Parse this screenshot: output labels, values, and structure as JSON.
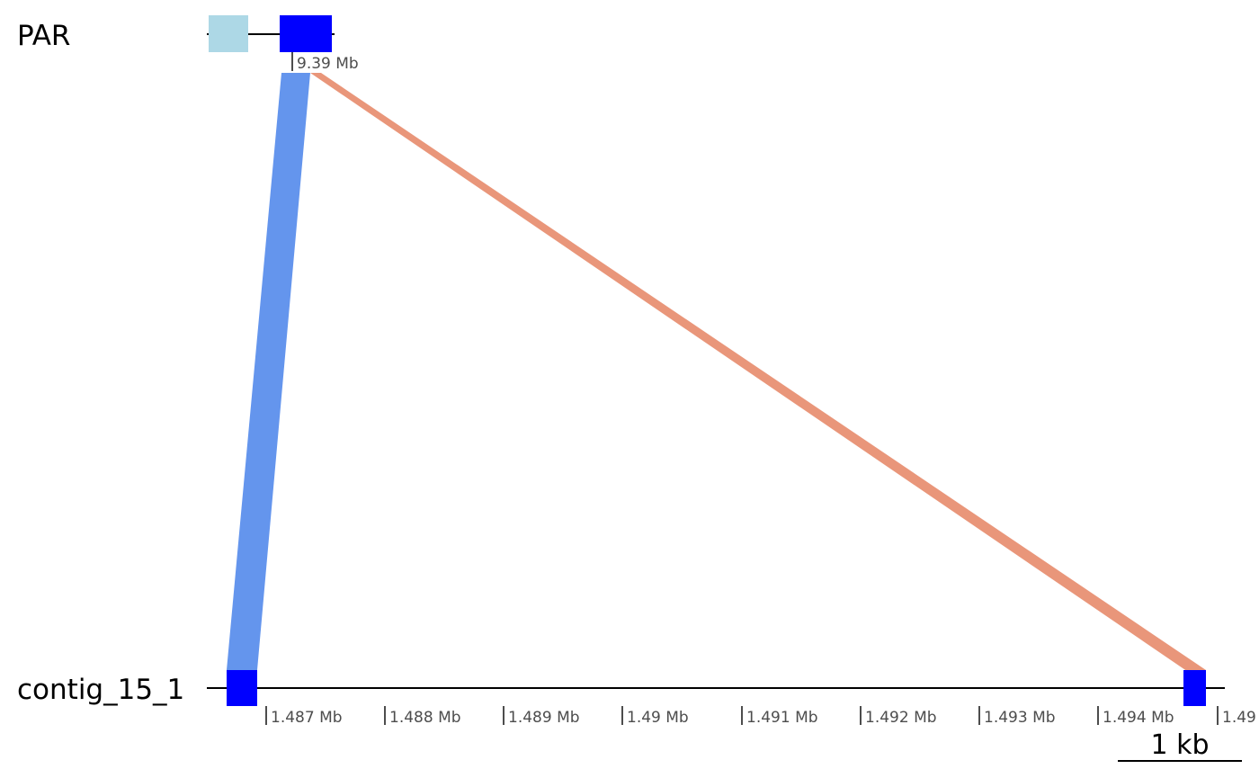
{
  "sequences": [
    {
      "name": "PAR"
    },
    {
      "name": "contig_15_1"
    }
  ],
  "par_ticks": [
    {
      "label": "9.39 Mb"
    }
  ],
  "contig_ticks": [
    {
      "label": "1.487 Mb"
    },
    {
      "label": "1.488 Mb"
    },
    {
      "label": "1.489 Mb"
    },
    {
      "label": "1.49 Mb"
    },
    {
      "label": "1.491 Mb"
    },
    {
      "label": "1.492 Mb"
    },
    {
      "label": "1.493 Mb"
    },
    {
      "label": "1.494 Mb"
    },
    {
      "label": "1.49"
    }
  ],
  "scale_bar": {
    "label": "1 kb"
  },
  "colors": {
    "gene_dark": "#0000ff",
    "gene_light": "#add8e6",
    "link_forward": "#6495ed",
    "link_reverse": "#e9967a",
    "backbone": "#000000",
    "tick": "#4d4d4d"
  }
}
